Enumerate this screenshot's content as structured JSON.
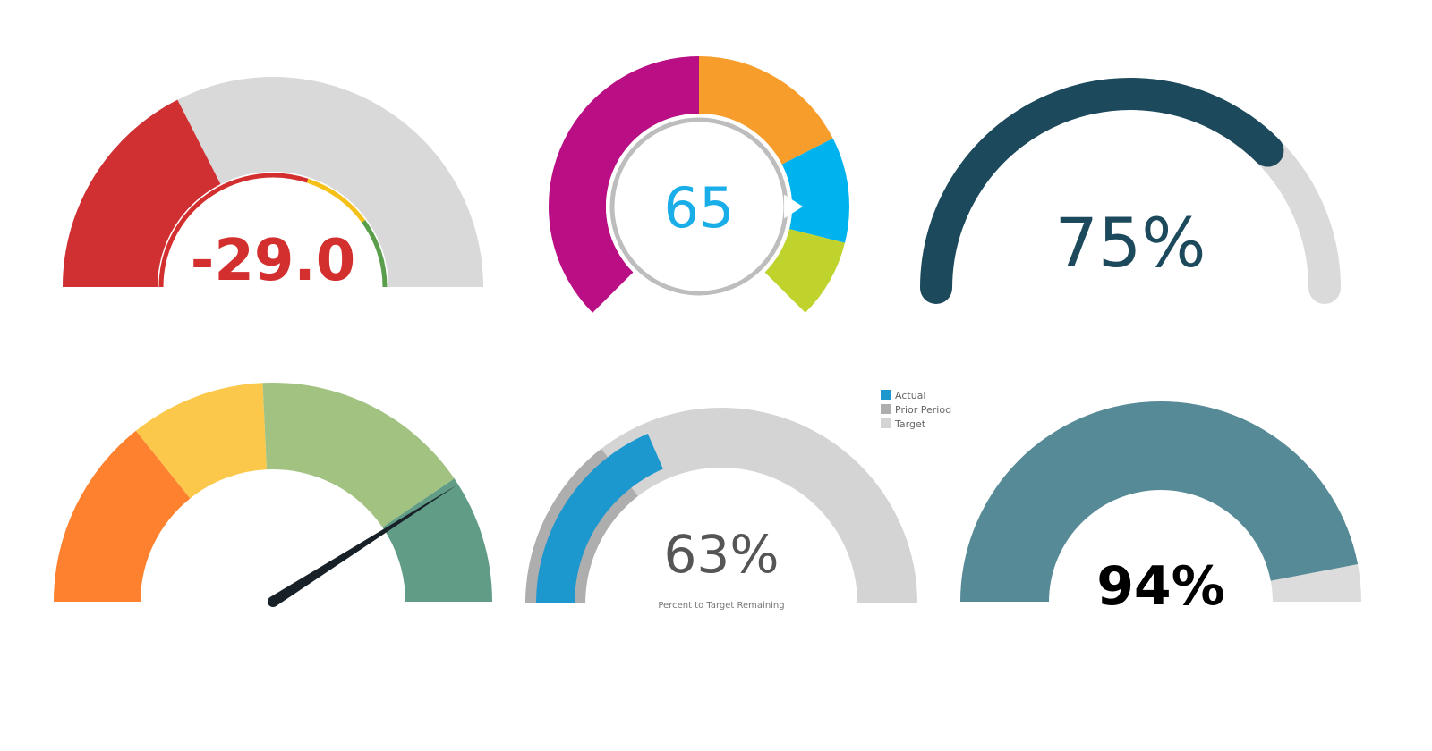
{
  "chart_data": [
    {
      "type": "gauge",
      "value_label": "-29.0",
      "value": -29.0,
      "fill_fraction": 0.35,
      "inner_scale_colors": [
        "#d32f2f",
        "#f5c118",
        "#5a9e4b"
      ],
      "inner_scale_fractions": [
        0.6,
        0.2,
        0.2
      ],
      "colors": {
        "fill": "#d13033",
        "track": "#d9d9d9",
        "label": "#d32f2f"
      }
    },
    {
      "type": "gauge",
      "value_label": "65",
      "value": 65,
      "segments": [
        {
          "color": "#b90e84",
          "start_deg": 225,
          "end_deg": 360
        },
        {
          "color": "#f79d2b",
          "start_deg": 0,
          "end_deg": 63
        },
        {
          "color": "#00b3ef",
          "start_deg": 63,
          "end_deg": 104
        },
        {
          "color": "#c0d22c",
          "start_deg": 104,
          "end_deg": 135
        }
      ],
      "pointer_angle_deg": 90,
      "colors": {
        "label": "#1aaee8",
        "ring": "#bdbdbd"
      }
    },
    {
      "type": "gauge",
      "value_label": "75%",
      "value": 75,
      "max": 100,
      "colors": {
        "fill": "#1c4a5c",
        "track": "#dadada",
        "label": "#1c4a5c"
      }
    },
    {
      "type": "gauge",
      "value": 82,
      "needle_fraction": 0.82,
      "bands": [
        {
          "color": "#fd812e",
          "from": 0,
          "to": 0.285
        },
        {
          "color": "#fcc84b",
          "from": 0.285,
          "to": 0.485
        },
        {
          "color": "#a1c281",
          "from": 0.485,
          "to": 0.81
        },
        {
          "color": "#619c87",
          "from": 0.81,
          "to": 1.0
        }
      ],
      "colors": {
        "needle": "#182127"
      }
    },
    {
      "type": "gauge",
      "value_label": "63%",
      "value": 63,
      "caption": "Percent to Target Remaining",
      "legend": [
        {
          "label": "Actual",
          "color": "#1c98cf"
        },
        {
          "label": "Prior Period",
          "color": "#aeaeae"
        },
        {
          "label": "Target",
          "color": "#d4d4d4"
        }
      ],
      "actual_fraction": 0.37,
      "prior_fraction": 0.29,
      "legend_position": "top-right",
      "colors": {
        "label": "#555555"
      }
    },
    {
      "type": "gauge",
      "value_label": "94%",
      "value": 94,
      "max": 100,
      "colors": {
        "fill": "#568a97",
        "track": "#dcdcdc",
        "label": "#000000"
      }
    }
  ]
}
